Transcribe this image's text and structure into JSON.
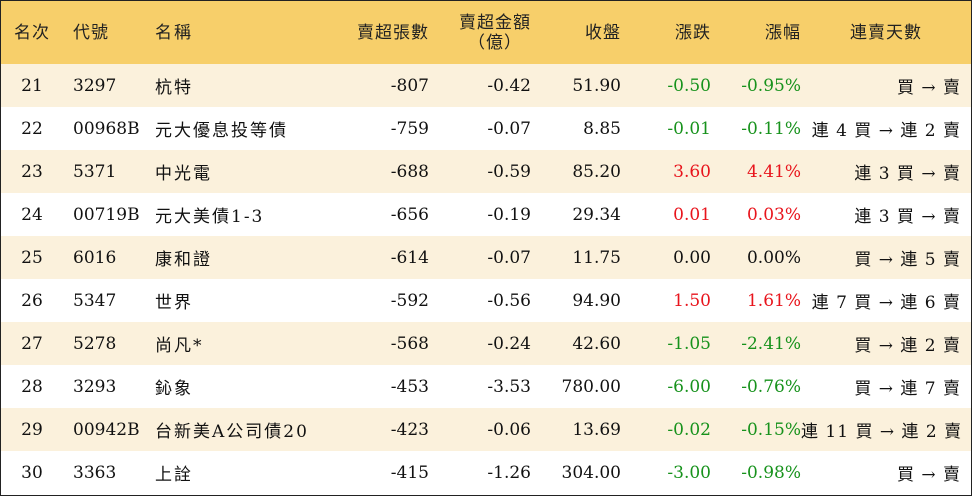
{
  "headers": {
    "rank": "名次",
    "code": "代號",
    "name": "名稱",
    "net_sell_volume": "賣超張數",
    "net_sell_amount_line1": "賣超金額",
    "net_sell_amount_line2": "（億）",
    "close": "收盤",
    "change": "漲跌",
    "change_pct": "漲幅",
    "streak": "連賣天數"
  },
  "colors": {
    "header_bg": "#f7cf6a",
    "odd_row_bg": "#fbf1dc",
    "up": "#e8141c",
    "down": "#17921c"
  },
  "rows": [
    {
      "rank": "21",
      "code": "3297",
      "name": "杭特",
      "volume": "-807",
      "amount": "-0.42",
      "close": "51.90",
      "change": "-0.50",
      "pct": "-0.95%",
      "dir": "down",
      "streak": "買 → 賣"
    },
    {
      "rank": "22",
      "code": "00968B",
      "name": "元大優息投等債",
      "volume": "-759",
      "amount": "-0.07",
      "close": "8.85",
      "change": "-0.01",
      "pct": "-0.11%",
      "dir": "down",
      "streak": "連 4 買 → 連 2 賣"
    },
    {
      "rank": "23",
      "code": "5371",
      "name": "中光電",
      "volume": "-688",
      "amount": "-0.59",
      "close": "85.20",
      "change": "3.60",
      "pct": "4.41%",
      "dir": "up",
      "streak": "連 3 買 → 賣"
    },
    {
      "rank": "24",
      "code": "00719B",
      "name": "元大美債1-3",
      "volume": "-656",
      "amount": "-0.19",
      "close": "29.34",
      "change": "0.01",
      "pct": "0.03%",
      "dir": "up",
      "streak": "連 3 買 → 賣"
    },
    {
      "rank": "25",
      "code": "6016",
      "name": "康和證",
      "volume": "-614",
      "amount": "-0.07",
      "close": "11.75",
      "change": "0.00",
      "pct": "0.00%",
      "dir": "flat",
      "streak": "買 → 連 5 賣"
    },
    {
      "rank": "26",
      "code": "5347",
      "name": "世界",
      "volume": "-592",
      "amount": "-0.56",
      "close": "94.90",
      "change": "1.50",
      "pct": "1.61%",
      "dir": "up",
      "streak": "連 7 買 → 連 6 賣"
    },
    {
      "rank": "27",
      "code": "5278",
      "name": "尚凡*",
      "volume": "-568",
      "amount": "-0.24",
      "close": "42.60",
      "change": "-1.05",
      "pct": "-2.41%",
      "dir": "down",
      "streak": "買 → 連 2 賣"
    },
    {
      "rank": "28",
      "code": "3293",
      "name": "鈊象",
      "volume": "-453",
      "amount": "-3.53",
      "close": "780.00",
      "change": "-6.00",
      "pct": "-0.76%",
      "dir": "down",
      "streak": "買 → 連 7 賣"
    },
    {
      "rank": "29",
      "code": "00942B",
      "name": "台新美A公司債20",
      "volume": "-423",
      "amount": "-0.06",
      "close": "13.69",
      "change": "-0.02",
      "pct": "-0.15%",
      "dir": "down",
      "streak": "連 11 買 → 連 2 賣"
    },
    {
      "rank": "30",
      "code": "3363",
      "name": "上詮",
      "volume": "-415",
      "amount": "-1.26",
      "close": "304.00",
      "change": "-3.00",
      "pct": "-0.98%",
      "dir": "down",
      "streak": "買 → 賣"
    }
  ]
}
